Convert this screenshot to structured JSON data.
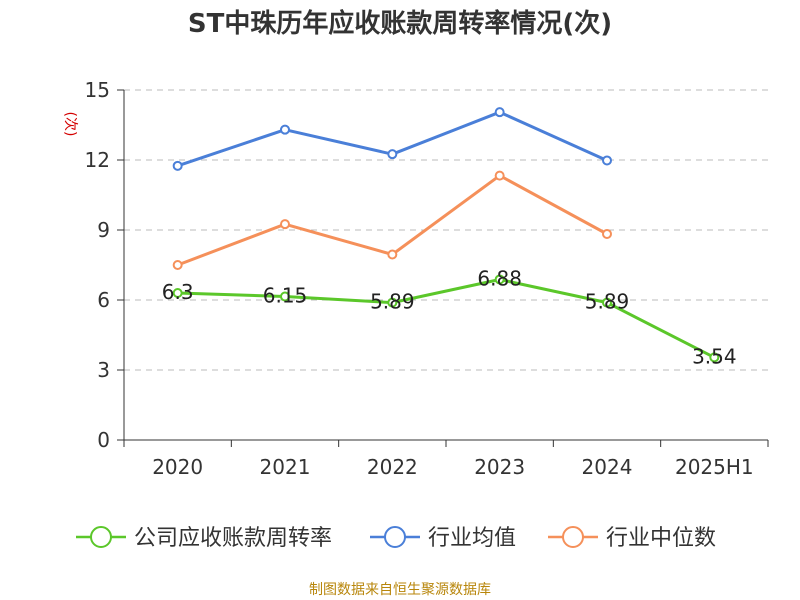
{
  "chart_data": {
    "type": "line",
    "title": "ST中珠历年应收账款周转率情况(次)",
    "ylabel": "(次)",
    "xlabel": "",
    "categories": [
      "2020",
      "2021",
      "2022",
      "2023",
      "2024",
      "2025H1"
    ],
    "ylim": [
      0,
      15
    ],
    "yticks": [
      0,
      3,
      6,
      9,
      12,
      15
    ],
    "grid": true,
    "legend_position": "bottom",
    "series": [
      {
        "name": "公司应收账款周转率",
        "color": "#5bc72a",
        "values": [
          6.3,
          6.15,
          5.89,
          6.88,
          5.89,
          3.54
        ],
        "labels": [
          "6.3",
          "6.15",
          "5.89",
          "6.88",
          "5.89",
          "3.54"
        ]
      },
      {
        "name": "行业均值",
        "color": "#4a7fd8",
        "values": [
          11.75,
          13.3,
          12.25,
          14.05,
          11.98,
          null
        ]
      },
      {
        "name": "行业中位数",
        "color": "#f5905a",
        "values": [
          7.5,
          9.25,
          7.95,
          11.33,
          8.83,
          null
        ]
      }
    ]
  },
  "source_note": "制图数据来自恒生聚源数据库"
}
